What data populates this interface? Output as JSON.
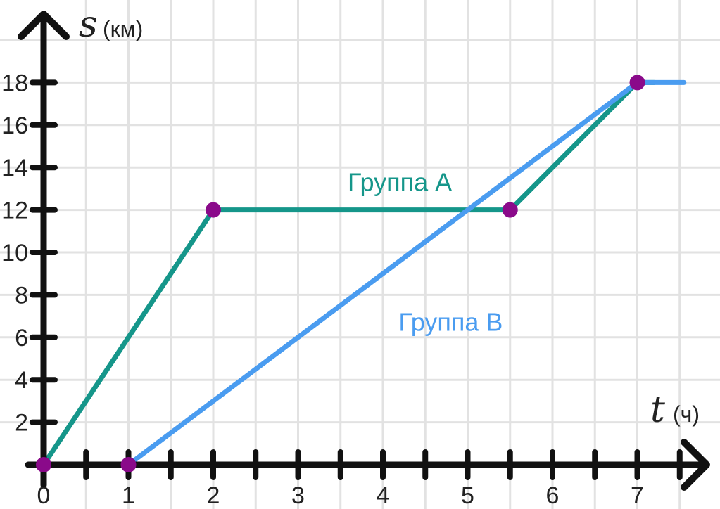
{
  "chart_data": {
    "type": "line",
    "title": "",
    "xlabel": "t",
    "xlabel_unit": "(ч)",
    "ylabel": "s",
    "ylabel_unit": "(км)",
    "xlim": [
      0,
      7.6
    ],
    "ylim": [
      0,
      18
    ],
    "grid": true,
    "x_ticks": [
      0,
      1,
      2,
      3,
      4,
      5,
      6,
      7
    ],
    "x_tick_labels": [
      "0",
      "1",
      "2",
      "3",
      "4",
      "5",
      "6",
      "7"
    ],
    "y_ticks": [
      2,
      4,
      6,
      8,
      10,
      12,
      14,
      16,
      18
    ],
    "y_tick_labels": [
      "2",
      "4",
      "6",
      "8",
      "10",
      "12",
      "14",
      "16",
      "18"
    ],
    "series": [
      {
        "name": "Группа A",
        "color": "#15968a",
        "x": [
          0,
          2,
          5.5,
          7,
          7.2
        ],
        "y": [
          0,
          12,
          12,
          18,
          18
        ]
      },
      {
        "name": "Группа B",
        "color": "#4a9cf0",
        "x": [
          0,
          1,
          7,
          7.55
        ],
        "y": [
          0,
          0,
          18,
          18
        ]
      }
    ],
    "highlighted_points": [
      {
        "x": 0,
        "y": 0
      },
      {
        "x": 1,
        "y": 0
      },
      {
        "x": 2,
        "y": 12
      },
      {
        "x": 5.5,
        "y": 12
      },
      {
        "x": 7,
        "y": 18
      }
    ],
    "point_color": "#8a0a8a",
    "axis_color": "#111111",
    "grid_color": "#e2e2e2"
  }
}
